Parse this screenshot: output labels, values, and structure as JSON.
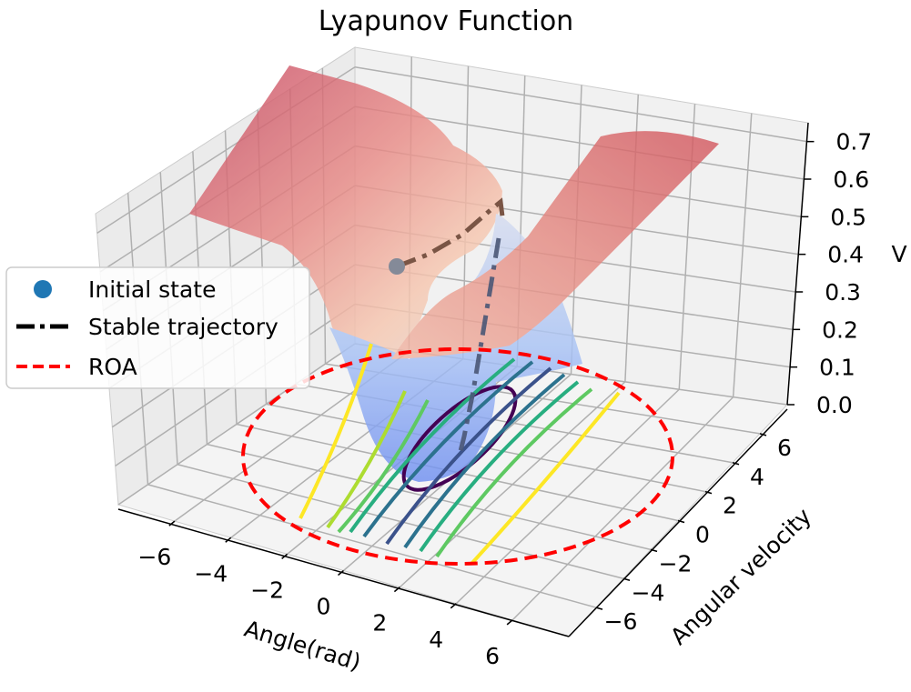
{
  "chart_data": {
    "type": "surface",
    "title": "Lyapunov Function",
    "xlabel": "Angle(rad)",
    "ylabel": "Angular velocity",
    "zlabel": "V",
    "xlim": [
      -8,
      8
    ],
    "ylim": [
      -8,
      8
    ],
    "zlim": [
      0,
      0.75
    ],
    "x_ticks": [
      "−6",
      "−4",
      "−2",
      "0",
      "2",
      "4",
      "6"
    ],
    "y_ticks": [
      "−6",
      "−4",
      "−2",
      "0",
      "2",
      "4",
      "6"
    ],
    "z_ticks": [
      "0.0",
      "0.1",
      "0.2",
      "0.3",
      "0.4",
      "0.5",
      "0.6",
      "0.7"
    ],
    "grid": true,
    "legend_position": "left",
    "legend": [
      {
        "label": "Initial state",
        "style": "marker",
        "color": "#1f77b4"
      },
      {
        "label": "Stable trajectory",
        "style": "dash-dot",
        "color": "#000000"
      },
      {
        "label": "ROA",
        "style": "dashed",
        "color": "#ff0000"
      }
    ],
    "colormap_surface": "coolwarm",
    "colormap_contours": "viridis",
    "initial_state": {
      "x": -5.5,
      "y": 3.0,
      "v": 0.33
    },
    "trajectory": [
      {
        "x": -5.5,
        "y": 3.0,
        "v": 0.33
      },
      {
        "x": -3.5,
        "y": 3.8,
        "v": 0.42
      },
      {
        "x": -2.0,
        "y": 4.6,
        "v": 0.5
      },
      {
        "x": -1.2,
        "y": 3.5,
        "v": 0.36
      },
      {
        "x": -0.6,
        "y": 1.8,
        "v": 0.12
      },
      {
        "x": -0.1,
        "y": 0.3,
        "v": 0.01
      },
      {
        "x": 0.0,
        "y": 0.0,
        "v": 0.0
      }
    ],
    "roa": {
      "center": [
        0,
        0
      ],
      "rx": 7.5,
      "ry": 7.5
    },
    "contour_levels": [
      0.05,
      0.1,
      0.15,
      0.2,
      0.25,
      0.3,
      0.4,
      0.6
    ]
  }
}
